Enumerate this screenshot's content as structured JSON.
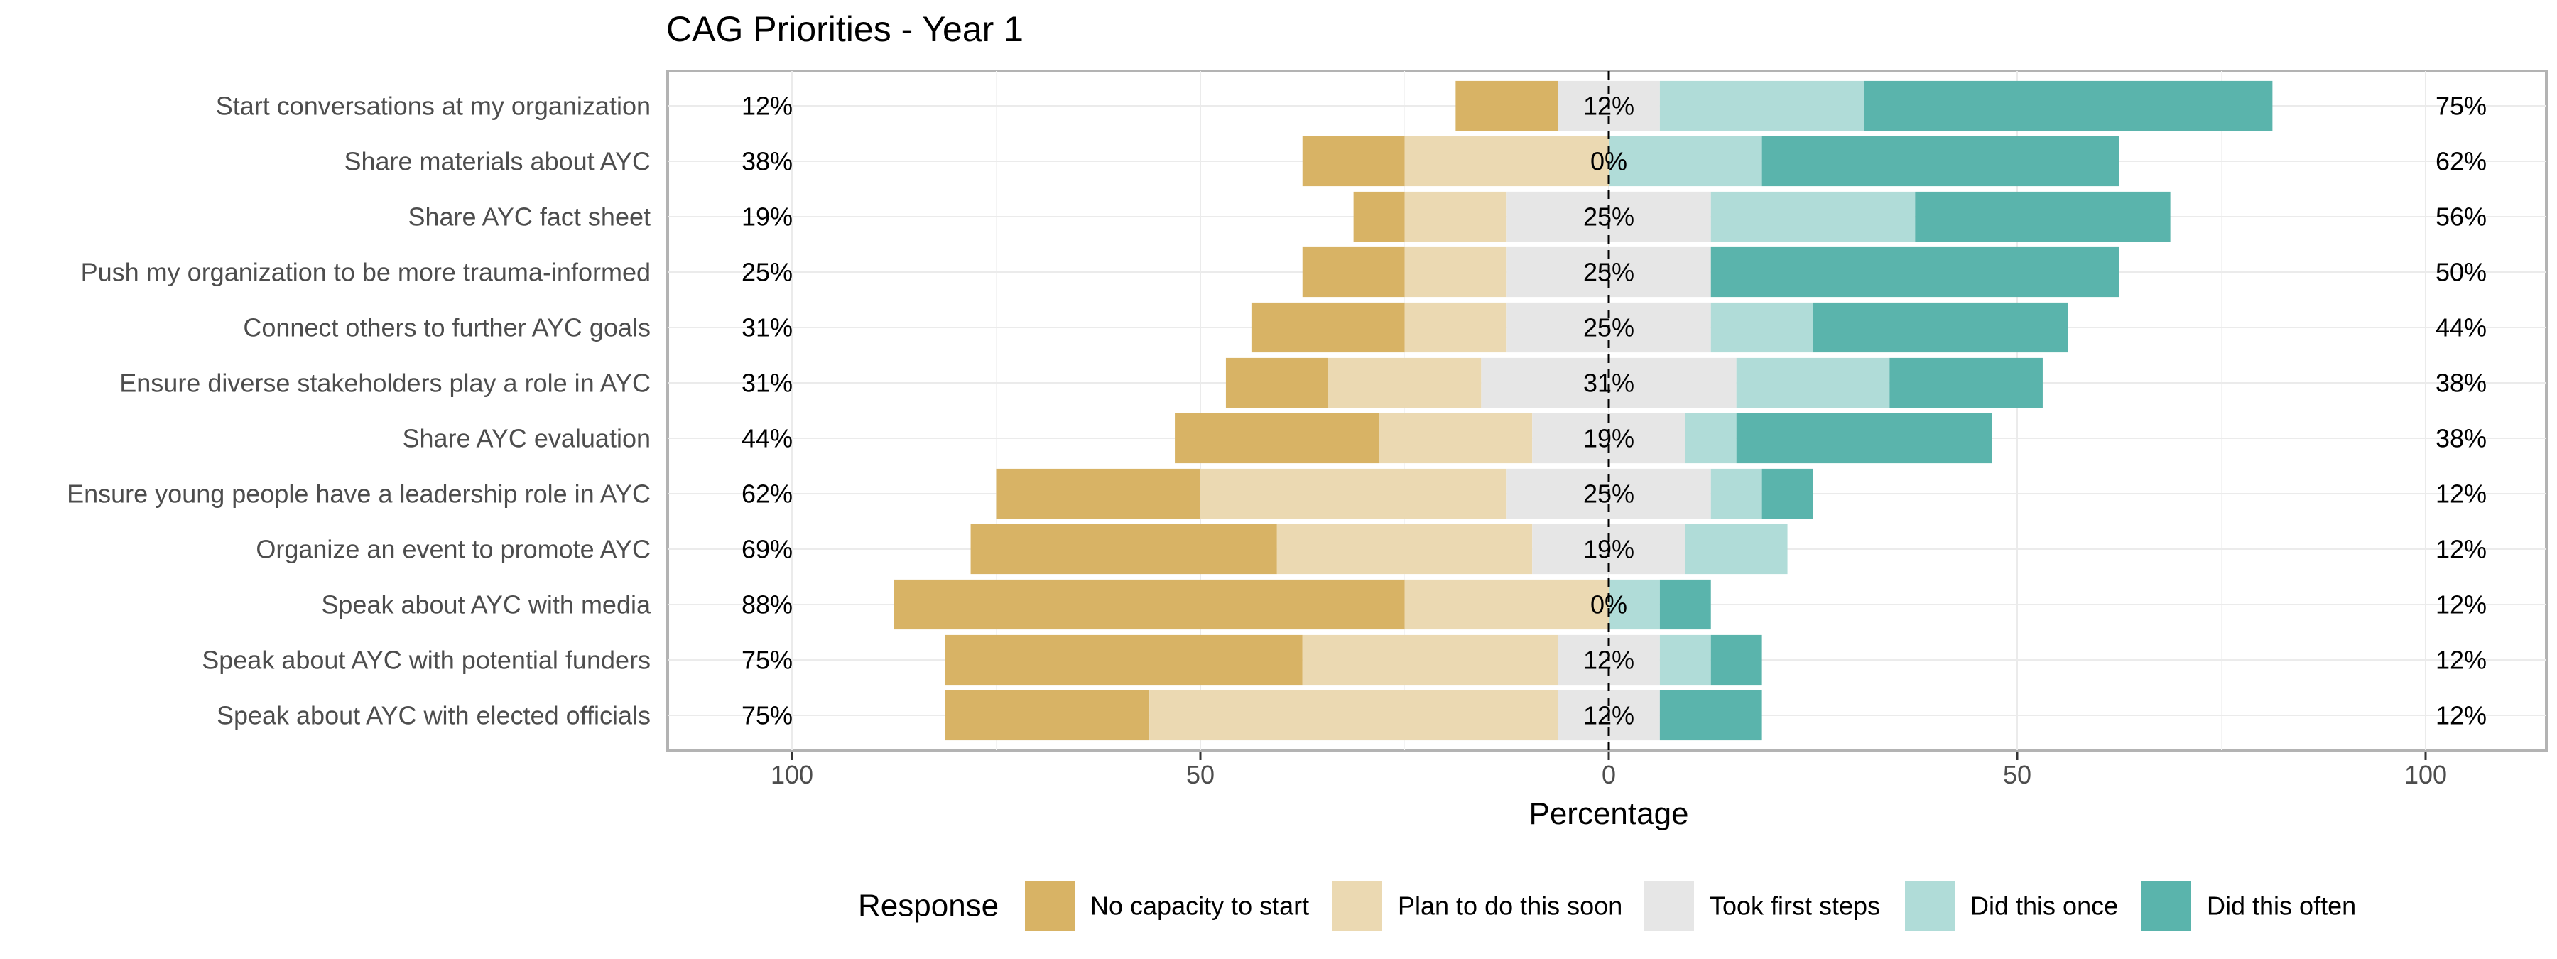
{
  "chart_data": {
    "type": "bar",
    "title": "CAG Priorities - Year 1",
    "xlabel": "Percentage",
    "ylabel": "",
    "xlim": [
      -100,
      100
    ],
    "x_ticks": [
      -100,
      -50,
      0,
      50,
      100
    ],
    "x_tick_labels": [
      "100",
      "50",
      "0",
      "50",
      "100"
    ],
    "legend_title": "Response",
    "legend_position": "bottom",
    "grid": true,
    "series": [
      {
        "name": "No capacity to start",
        "color": "#D8B365"
      },
      {
        "name": "Plan to do this soon",
        "color": "#EBD9B2"
      },
      {
        "name": "Took first steps",
        "color": "#E6E6E6"
      },
      {
        "name": "Did this once",
        "color": "#B0DCD8"
      },
      {
        "name": "Did this often",
        "color": "#5AB4AC"
      }
    ],
    "categories": [
      "Start conversations at my organization",
      "Share materials about AYC",
      "Share AYC fact sheet",
      "Push my organization to be more trauma-informed",
      "Connect others to further AYC goals",
      "Ensure diverse stakeholders play a role in AYC",
      "Share AYC evaluation",
      "Ensure young people have a leadership role in AYC",
      "Organize an event to promote AYC",
      "Speak about AYC with media",
      "Speak about AYC with potential funders",
      "Speak about AYC with elected officials"
    ],
    "values": [
      [
        12.5,
        0,
        12.5,
        25,
        50
      ],
      [
        12.5,
        25,
        0,
        18.75,
        43.75
      ],
      [
        6.25,
        12.5,
        25,
        25,
        31.25
      ],
      [
        12.5,
        12.5,
        25,
        0,
        50
      ],
      [
        18.75,
        12.5,
        25,
        12.5,
        31.25
      ],
      [
        12.5,
        18.75,
        31.25,
        18.75,
        18.75
      ],
      [
        25,
        18.75,
        18.75,
        6.25,
        31.25
      ],
      [
        25,
        37.5,
        25,
        6.25,
        6.25
      ],
      [
        37.5,
        31.25,
        18.75,
        12.5,
        0
      ],
      [
        62.5,
        25,
        0,
        6.25,
        6.25
      ],
      [
        43.75,
        31.25,
        12.5,
        6.25,
        6.25
      ],
      [
        25,
        50,
        12.5,
        0,
        12.5
      ]
    ],
    "left_labels": [
      "12%",
      "38%",
      "19%",
      "25%",
      "31%",
      "31%",
      "44%",
      "62%",
      "69%",
      "88%",
      "75%",
      "75%"
    ],
    "center_labels": [
      "12%",
      "0%",
      "25%",
      "25%",
      "25%",
      "31%",
      "19%",
      "25%",
      "19%",
      "0%",
      "12%",
      "12%"
    ],
    "right_labels": [
      "75%",
      "62%",
      "56%",
      "50%",
      "44%",
      "38%",
      "38%",
      "12%",
      "12%",
      "12%",
      "12%",
      "12%"
    ]
  }
}
